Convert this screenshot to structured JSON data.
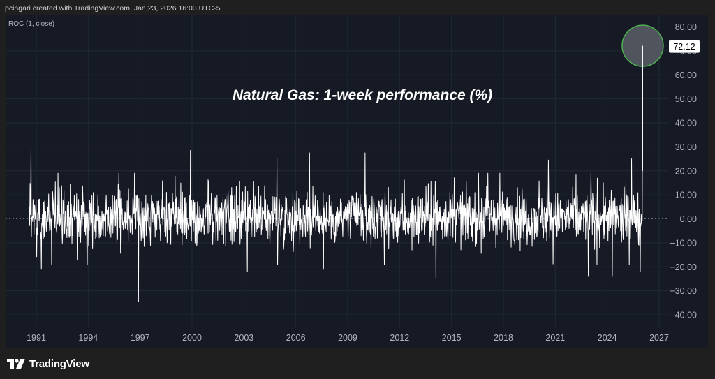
{
  "header": {
    "caption": "pcingari created with TradingView.com, Jan 23, 2026 16:03 UTC-5"
  },
  "study": {
    "label": "ROC (1, close)"
  },
  "footer": {
    "brand": "TradingView",
    "logo_icon": "tradingview-logo-icon"
  },
  "colors": {
    "page_bg": "#1f1f1f",
    "plot_bg": "#161a25",
    "grid": "#232838",
    "series": "#ffffff",
    "axis_text": "#b2b5be",
    "highlight_fill": "#5a5f66",
    "highlight_stroke": "#4caf50",
    "zero_line": "#6b7080"
  },
  "chart_data": {
    "type": "line",
    "title": "Natural Gas: 1-week performance (%)",
    "series_name": "ROC (1, close)",
    "x_axis": {
      "ticks": [
        "1991",
        "1994",
        "1997",
        "2000",
        "2003",
        "2006",
        "2009",
        "2012",
        "2015",
        "2018",
        "2021",
        "2024",
        "2027"
      ],
      "range": [
        1990.0,
        2027.5
      ]
    },
    "y_axis": {
      "ticks": [
        "80.00",
        "70.00",
        "60.00",
        "50.00",
        "40.00",
        "30.00",
        "20.00",
        "10.00",
        "0.00",
        "−10.00",
        "−20.00",
        "−30.00",
        "−40.00"
      ],
      "range": [
        -44,
        84
      ],
      "position": "right"
    },
    "grid": true,
    "last_value_label": "72.12",
    "highlight": {
      "x": 2026.05,
      "y": 72.12,
      "description": "circled spike"
    },
    "key_points": [
      {
        "x": 1990.7,
        "y": 29
      },
      {
        "x": 1991.3,
        "y": -21
      },
      {
        "x": 1996.9,
        "y": -34.5
      },
      {
        "x": 1999.9,
        "y": 28.5
      },
      {
        "x": 2003.2,
        "y": -22
      },
      {
        "x": 2004.9,
        "y": 25.5
      },
      {
        "x": 2006.8,
        "y": 27.5
      },
      {
        "x": 2007.6,
        "y": -21
      },
      {
        "x": 2010.0,
        "y": 27.5
      },
      {
        "x": 2014.1,
        "y": -25
      },
      {
        "x": 2020.6,
        "y": 24.5
      },
      {
        "x": 2022.9,
        "y": -24
      },
      {
        "x": 2024.3,
        "y": -24
      },
      {
        "x": 2025.4,
        "y": 25
      },
      {
        "x": 2025.9,
        "y": -22
      },
      {
        "x": 2026.05,
        "y": 72.12
      }
    ]
  }
}
